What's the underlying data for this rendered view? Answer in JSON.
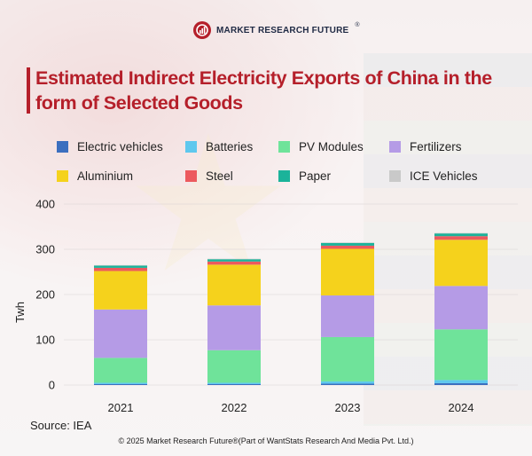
{
  "brand": {
    "name": "MARKET RESEARCH FUTURE",
    "reg": "®"
  },
  "title": "Estimated Indirect Electricity Exports of China in the form of Selected Goods",
  "source": "Source: IEA",
  "copyright": "© 2025 Market Research Future®(Part of WantStats Research And Media Pvt. Ltd.)",
  "colors": {
    "Electric vehicles": "#3b6fbf",
    "Batteries": "#5ec8ee",
    "PV Modules": "#6fe39a",
    "Fertilizers": "#b59be6",
    "Aluminium": "#f5d21c",
    "Steel": "#ec5a5e",
    "Paper": "#1bb39a",
    "ICE Vehicles": "#c9c9c9"
  },
  "chart_data": {
    "type": "bar",
    "stacked": true,
    "title": "Estimated Indirect Electricity Exports of China in the form of Selected Goods",
    "xlabel": "",
    "ylabel": "Twh",
    "ylim": [
      0,
      400
    ],
    "yticks": [
      0,
      100,
      200,
      300,
      400
    ],
    "categories": [
      "2021",
      "2022",
      "2023",
      "2024"
    ],
    "legend_position": "top",
    "series": [
      {
        "name": "Electric vehicles",
        "values": [
          2,
          2,
          3,
          4
        ]
      },
      {
        "name": "Batteries",
        "values": [
          3,
          3,
          5,
          7
        ]
      },
      {
        "name": "PV Modules",
        "values": [
          55,
          72,
          98,
          112
        ]
      },
      {
        "name": "Fertilizers",
        "values": [
          107,
          99,
          92,
          96
        ]
      },
      {
        "name": "Aluminium",
        "values": [
          85,
          90,
          103,
          102
        ]
      },
      {
        "name": "Steel",
        "values": [
          7,
          7,
          7,
          8
        ]
      },
      {
        "name": "Paper",
        "values": [
          5,
          5,
          6,
          6
        ]
      },
      {
        "name": "ICE Vehicles",
        "values": [
          1,
          1,
          1,
          1
        ]
      }
    ]
  }
}
